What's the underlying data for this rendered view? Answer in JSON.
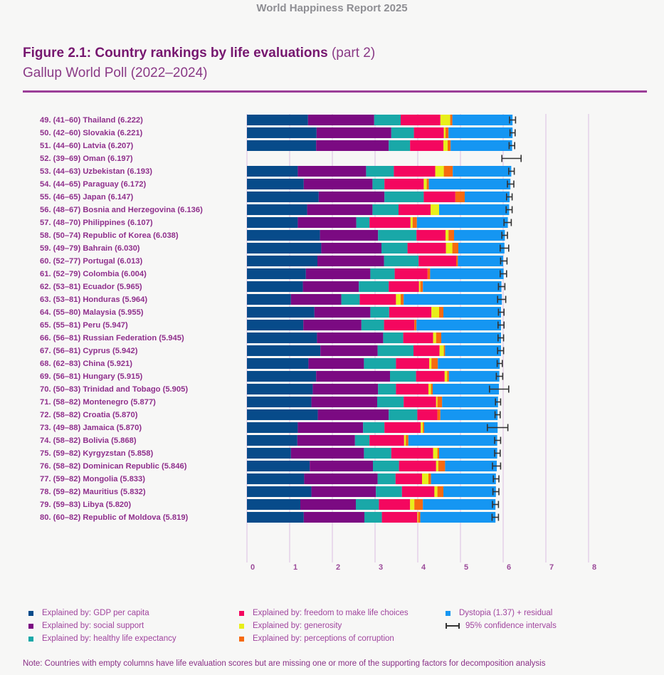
{
  "header": {
    "report_title": "World Happiness Report 2025"
  },
  "figure": {
    "title_bold": "Figure 2.1: Country rankings by life evaluations",
    "title_part": "(part 2)",
    "subtitle": "Gallup World Poll (2022–2024)"
  },
  "colors": {
    "gdp": "#074b8a",
    "social": "#7b0a82",
    "health": "#19a8a8",
    "freedom": "#f4075f",
    "generosity": "#e8ef1a",
    "corruption": "#f66a10",
    "dystopia": "#1596f2",
    "ci": "#333333",
    "label": "#8f2f8c",
    "grid": "#e0c8e6"
  },
  "chart_data": {
    "type": "bar",
    "orientation": "horizontal",
    "stacked": true,
    "title": "Figure 2.1: Country rankings by life evaluations (part 2)",
    "subtitle": "Gallup World Poll (2022–2024)",
    "xlabel": "",
    "ylabel": "",
    "xlim": [
      0,
      8
    ],
    "x_ticks": [
      "0",
      "1",
      "2",
      "3",
      "4",
      "5",
      "6",
      "7",
      "8"
    ],
    "grid": true,
    "legend_position": "bottom",
    "series_names": [
      "Explained by: GDP per capita",
      "Explained by: social support",
      "Explained by: healthy life expectancy",
      "Explained by: freedom to make life choices",
      "Explained by: generosity",
      "Explained by: perceptions of corruption",
      "Dystopia (1.37) + residual"
    ],
    "ci_label": "95% confidence intervals",
    "rows": [
      {
        "rank": "49.",
        "range": "(41–60)",
        "country": "Thailand",
        "score": 6.222,
        "segments": [
          1.43,
          1.55,
          0.62,
          0.93,
          0.23,
          0.05,
          1.41
        ],
        "ci": [
          6.15,
          6.29
        ]
      },
      {
        "rank": "50.",
        "range": "(42–60)",
        "country": "Slovakia",
        "score": 6.221,
        "segments": [
          1.63,
          1.75,
          0.53,
          0.7,
          0.04,
          0.07,
          1.5
        ],
        "ci": [
          6.16,
          6.28
        ]
      },
      {
        "rank": "51.",
        "range": "(44–60)",
        "country": "Latvia",
        "score": 6.207,
        "segments": [
          1.62,
          1.7,
          0.5,
          0.78,
          0.1,
          0.07,
          1.44
        ],
        "ci": [
          6.14,
          6.27
        ]
      },
      {
        "rank": "52.",
        "range": "(39–69)",
        "country": "Oman",
        "score": 6.197,
        "segments": null,
        "ci": [
          5.97,
          6.42
        ]
      },
      {
        "rank": "53.",
        "range": "(44–63)",
        "country": "Uzbekistan",
        "score": 6.193,
        "segments": [
          1.19,
          1.6,
          0.65,
          0.97,
          0.2,
          0.21,
          1.37
        ],
        "ci": [
          6.13,
          6.26
        ]
      },
      {
        "rank": "54.",
        "range": "(44–65)",
        "country": "Paraguay",
        "score": 6.172,
        "segments": [
          1.33,
          1.61,
          0.28,
          0.92,
          0.07,
          0.05,
          1.91
        ],
        "ci": [
          6.1,
          6.25
        ]
      },
      {
        "rank": "55.",
        "range": "(46–65)",
        "country": "Japan",
        "score": 6.147,
        "segments": [
          1.68,
          1.54,
          0.92,
          0.74,
          0.0,
          0.22,
          1.05
        ],
        "ci": [
          6.08,
          6.21
        ]
      },
      {
        "rank": "56.",
        "range": "(48–67)",
        "country": "Bosnia and Herzegovina",
        "score": 6.136,
        "segments": [
          1.41,
          1.53,
          0.61,
          0.75,
          0.2,
          0.0,
          1.64
        ],
        "ci": [
          6.07,
          6.21
        ]
      },
      {
        "rank": "57.",
        "range": "(48–70)",
        "country": "Philippines",
        "score": 6.107,
        "segments": [
          1.19,
          1.37,
          0.31,
          0.96,
          0.05,
          0.1,
          2.13
        ],
        "ci": [
          6.02,
          6.19
        ]
      },
      {
        "rank": "58.",
        "range": "(50–74)",
        "country": "Republic of Korea",
        "score": 6.038,
        "segments": [
          1.71,
          1.36,
          0.9,
          0.68,
          0.07,
          0.13,
          1.19
        ],
        "ci": [
          5.97,
          6.1
        ]
      },
      {
        "rank": "59.",
        "range": "(49–79)",
        "country": "Bahrain",
        "score": 6.03,
        "segments": [
          1.74,
          1.41,
          0.61,
          0.9,
          0.15,
          0.14,
          1.08
        ],
        "ci": [
          5.93,
          6.13
        ]
      },
      {
        "rank": "60.",
        "range": "(52–77)",
        "country": "Portugal",
        "score": 6.013,
        "segments": [
          1.65,
          1.56,
          0.81,
          0.88,
          0.0,
          0.04,
          1.06
        ],
        "ci": [
          5.94,
          6.09
        ]
      },
      {
        "rank": "61.",
        "range": "(52–79)",
        "country": "Colombia",
        "score": 6.004,
        "segments": [
          1.38,
          1.51,
          0.57,
          0.77,
          0.0,
          0.06,
          1.72
        ],
        "ci": [
          5.93,
          6.08
        ]
      },
      {
        "rank": "62.",
        "range": "(53–81)",
        "country": "Ecuador",
        "score": 5.965,
        "segments": [
          1.31,
          1.31,
          0.7,
          0.71,
          0.03,
          0.06,
          1.84
        ],
        "ci": [
          5.89,
          6.04
        ]
      },
      {
        "rank": "63.",
        "range": "(53–81)",
        "country": "Honduras",
        "score": 5.964,
        "segments": [
          1.03,
          1.18,
          0.43,
          0.85,
          0.11,
          0.07,
          2.3
        ],
        "ci": [
          5.87,
          6.06
        ]
      },
      {
        "rank": "64.",
        "range": "(55–80)",
        "country": "Malaysia",
        "score": 5.955,
        "segments": [
          1.58,
          1.31,
          0.44,
          0.99,
          0.18,
          0.1,
          1.35
        ],
        "ci": [
          5.89,
          6.02
        ]
      },
      {
        "rank": "65.",
        "range": "(55–81)",
        "country": "Peru",
        "score": 5.947,
        "segments": [
          1.32,
          1.36,
          0.53,
          0.71,
          0.0,
          0.05,
          1.98
        ],
        "ci": [
          5.88,
          6.02
        ]
      },
      {
        "rank": "66.",
        "range": "(56–81)",
        "country": "Russian Federation",
        "score": 5.945,
        "segments": [
          1.64,
          1.55,
          0.47,
          0.7,
          0.07,
          0.12,
          1.4
        ],
        "ci": [
          5.88,
          6.01
        ]
      },
      {
        "rank": "67.",
        "range": "(56–81)",
        "country": "Cyprus",
        "score": 5.942,
        "segments": [
          1.72,
          1.34,
          0.84,
          0.61,
          0.1,
          0.03,
          1.31
        ],
        "ci": [
          5.87,
          6.01
        ]
      },
      {
        "rank": "68.",
        "range": "(62–83)",
        "country": "China",
        "score": 5.921,
        "segments": [
          1.44,
          1.3,
          0.75,
          0.78,
          0.05,
          0.15,
          1.45
        ],
        "ci": [
          5.86,
          5.98
        ]
      },
      {
        "rank": "69.",
        "range": "(56–81)",
        "country": "Hungary",
        "score": 5.915,
        "segments": [
          1.62,
          1.73,
          0.61,
          0.67,
          0.06,
          0.04,
          1.18
        ],
        "ci": [
          5.84,
          5.99
        ]
      },
      {
        "rank": "70.",
        "range": "(50–83)",
        "country": "Trinidad and Tobago",
        "score": 5.905,
        "segments": [
          1.54,
          1.53,
          0.42,
          0.76,
          0.06,
          0.04,
          1.55
        ],
        "ci": [
          5.68,
          6.13
        ]
      },
      {
        "rank": "71.",
        "range": "(58–82)",
        "country": "Montenegro",
        "score": 5.877,
        "segments": [
          1.51,
          1.54,
          0.62,
          0.76,
          0.03,
          0.11,
          1.31
        ],
        "ci": [
          5.82,
          5.94
        ]
      },
      {
        "rank": "72.",
        "range": "(58–82)",
        "country": "Croatia",
        "score": 5.87,
        "segments": [
          1.66,
          1.66,
          0.67,
          0.47,
          0.0,
          0.07,
          1.34
        ],
        "ci": [
          5.81,
          5.93
        ]
      },
      {
        "rank": "73.",
        "range": "(49–88)",
        "country": "Jamaica",
        "score": 5.87,
        "segments": [
          1.19,
          1.53,
          0.5,
          0.85,
          0.05,
          0.03,
          1.72
        ],
        "ci": [
          5.63,
          6.11
        ]
      },
      {
        "rank": "74.",
        "range": "(58–82)",
        "country": "Bolivia",
        "score": 5.868,
        "segments": [
          1.18,
          1.35,
          0.34,
          0.81,
          0.04,
          0.06,
          2.08
        ],
        "ci": [
          5.8,
          5.94
        ]
      },
      {
        "rank": "75.",
        "range": "(59–82)",
        "country": "Kyrgyzstan",
        "score": 5.858,
        "segments": [
          1.03,
          1.71,
          0.64,
          0.98,
          0.1,
          0.04,
          1.36
        ],
        "ci": [
          5.8,
          5.93
        ]
      },
      {
        "rank": "76.",
        "range": "(58–82)",
        "country": "Dominican Republic",
        "score": 5.846,
        "segments": [
          1.47,
          1.48,
          0.61,
          0.87,
          0.05,
          0.16,
          1.21
        ],
        "ci": [
          5.75,
          5.94
        ]
      },
      {
        "rank": "77.",
        "range": "(59–82)",
        "country": "Mongolia",
        "score": 5.833,
        "segments": [
          1.34,
          1.72,
          0.42,
          0.62,
          0.15,
          0.06,
          1.52
        ],
        "ci": [
          5.77,
          5.9
        ]
      },
      {
        "rank": "78.",
        "range": "(59–82)",
        "country": "Mauritius",
        "score": 5.832,
        "segments": [
          1.51,
          1.51,
          0.61,
          0.76,
          0.07,
          0.14,
          1.23
        ],
        "ci": [
          5.76,
          5.9
        ]
      },
      {
        "rank": "79.",
        "range": "(59–83)",
        "country": "Libya",
        "score": 5.82,
        "segments": [
          1.25,
          1.3,
          0.54,
          0.73,
          0.1,
          0.2,
          1.7
        ],
        "ci": [
          5.75,
          5.89
        ]
      },
      {
        "rank": "80.",
        "range": "(60–82)",
        "country": "Republic of Moldova",
        "score": 5.819,
        "segments": [
          1.33,
          1.42,
          0.41,
          0.83,
          0.02,
          0.05,
          1.76
        ],
        "ci": [
          5.74,
          5.89
        ]
      }
    ]
  },
  "legend": {
    "items": [
      {
        "label": "Explained by: GDP per capita",
        "key": "gdp"
      },
      {
        "label": "Explained by: social support",
        "key": "social"
      },
      {
        "label": "Explained by: healthy life expectancy",
        "key": "health"
      },
      {
        "label": "Explained by: freedom to make life choices",
        "key": "freedom"
      },
      {
        "label": "Explained by: generosity",
        "key": "generosity"
      },
      {
        "label": "Explained by: perceptions of corruption",
        "key": "corruption"
      },
      {
        "label": "Dystopia (1.37) + residual",
        "key": "dystopia"
      }
    ],
    "ci_label": "95% confidence intervals"
  },
  "note": "Note: Countries with empty columns have life evaluation scores but are missing one or more of the supporting factors for decomposition analysis"
}
